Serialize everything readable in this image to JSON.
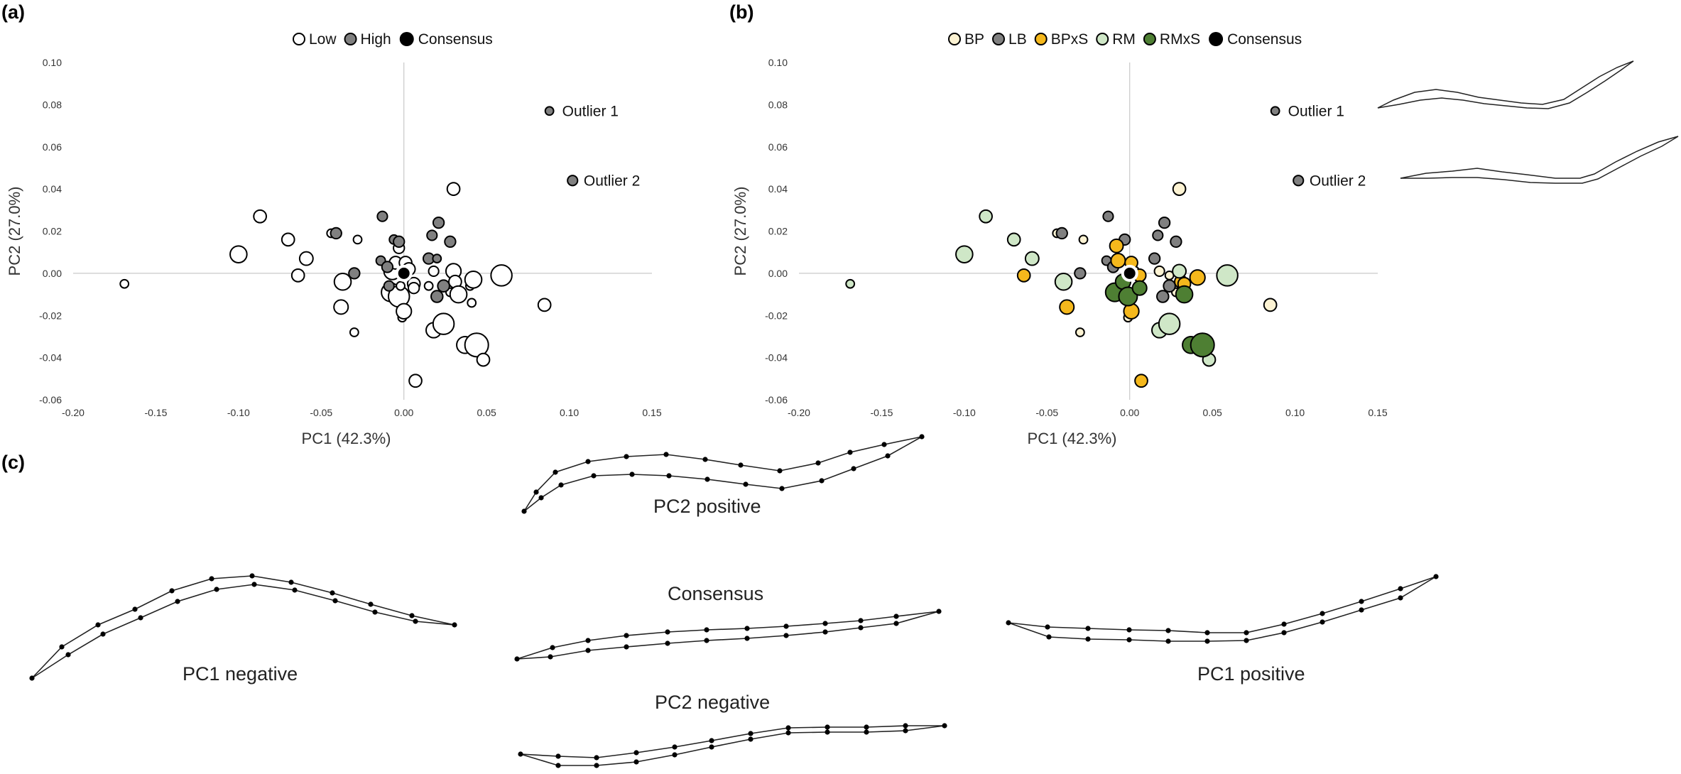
{
  "panel_labels": {
    "a": "(a)",
    "b": "(b)",
    "c": "(c)"
  },
  "chart_data": [
    {
      "type": "scatter",
      "panel": "(a)",
      "xlabel": "PC1 (42.3%)",
      "ylabel": "PC2 (27.0%)",
      "xlim": [
        -0.2,
        0.15
      ],
      "ylim": [
        -0.06,
        0.1
      ],
      "xticks": [
        "-0.20",
        "-0.15",
        "-0.10",
        "-0.05",
        "0.00",
        "0.05",
        "0.10",
        "0.15"
      ],
      "yticks": [
        "-0.06",
        "-0.04",
        "-0.02",
        "0.00",
        "0.02",
        "0.04",
        "0.06",
        "0.08",
        "0.10"
      ],
      "legend_position": "top-center",
      "legend": [
        {
          "name": "Low",
          "color": "#ffffff"
        },
        {
          "name": "High",
          "color": "#808080"
        },
        {
          "name": "Consensus",
          "color": "#000000"
        }
      ],
      "annotations": [
        {
          "text": "Outlier 1",
          "x": 0.088,
          "y": 0.077
        },
        {
          "text": "Outlier 2",
          "x": 0.101,
          "y": 0.044
        }
      ],
      "series": [
        {
          "name": "Low",
          "color": "#ffffff",
          "points": [
            [
              -0.169,
              -0.005,
              1
            ],
            [
              -0.1,
              0.009,
              2
            ],
            [
              -0.087,
              0.027,
              1.5
            ],
            [
              -0.07,
              0.016,
              1.5
            ],
            [
              -0.064,
              -0.001,
              1.5
            ],
            [
              -0.059,
              0.007,
              1.6
            ],
            [
              -0.044,
              0.019,
              1
            ],
            [
              -0.037,
              -0.004,
              2
            ],
            [
              -0.038,
              -0.016,
              1.7
            ],
            [
              -0.03,
              -0.028,
              1
            ],
            [
              -0.028,
              0.016,
              1
            ],
            [
              -0.009,
              0.003,
              1
            ],
            [
              -0.008,
              -0.009,
              2.2
            ],
            [
              -0.007,
              0.001,
              2
            ],
            [
              -0.005,
              0.005,
              1.5
            ],
            [
              -0.003,
              -0.011,
              2.5
            ],
            [
              -0.003,
              0.012,
              1.3
            ],
            [
              -0.001,
              -0.021,
              1
            ],
            [
              0.0,
              -0.018,
              1.8
            ],
            [
              -0.002,
              -0.006,
              1
            ],
            [
              0.001,
              0.005,
              1.5
            ],
            [
              0.003,
              0.002,
              1.5
            ],
            [
              0.006,
              -0.005,
              1.5
            ],
            [
              0.006,
              -0.007,
              1.3
            ],
            [
              0.007,
              -0.051,
              1.5
            ],
            [
              0.015,
              -0.006,
              1
            ],
            [
              0.018,
              0.001,
              1.2
            ],
            [
              0.018,
              -0.027,
              1.8
            ],
            [
              0.024,
              -0.024,
              2.5
            ],
            [
              0.028,
              -0.009,
              1
            ],
            [
              0.03,
              0.04,
              1.5
            ],
            [
              0.03,
              0.001,
              1.8
            ],
            [
              0.031,
              -0.004,
              1.5
            ],
            [
              0.033,
              -0.01,
              2
            ],
            [
              0.037,
              -0.034,
              2
            ],
            [
              0.04,
              -0.006,
              1
            ],
            [
              0.041,
              -0.014,
              1
            ],
            [
              0.042,
              -0.003,
              2
            ],
            [
              0.044,
              -0.034,
              2.8
            ],
            [
              0.048,
              -0.041,
              1.5
            ],
            [
              0.059,
              -0.001,
              2.5
            ],
            [
              0.085,
              -0.015,
              1.5
            ]
          ]
        },
        {
          "name": "High",
          "color": "#808080",
          "points": [
            [
              -0.041,
              0.019,
              1.3
            ],
            [
              -0.03,
              0.0,
              1.3
            ],
            [
              -0.013,
              0.027,
              1.2
            ],
            [
              -0.014,
              0.006,
              1.1
            ],
            [
              -0.01,
              0.003,
              1.3
            ],
            [
              -0.009,
              -0.006,
              1.2
            ],
            [
              -0.006,
              0.016,
              1.1
            ],
            [
              -0.003,
              0.015,
              1.3
            ],
            [
              0.015,
              0.007,
              1.3
            ],
            [
              0.017,
              0.018,
              1.2
            ],
            [
              0.02,
              0.007,
              1
            ],
            [
              0.02,
              -0.011,
              1.4
            ],
            [
              0.021,
              0.024,
              1.3
            ],
            [
              0.024,
              -0.006,
              1.4
            ],
            [
              0.028,
              0.015,
              1.3
            ],
            [
              0.088,
              0.077,
              1
            ],
            [
              0.102,
              0.044,
              1.2
            ]
          ]
        },
        {
          "name": "Consensus",
          "color": "#000000",
          "points": [
            [
              0.0,
              0.0,
              1.6
            ]
          ]
        }
      ]
    },
    {
      "type": "scatter",
      "panel": "(b)",
      "xlabel": "PC1 (42.3%)",
      "ylabel": "PC2 (27.0%)",
      "xlim": [
        -0.2,
        0.15
      ],
      "ylim": [
        -0.06,
        0.1
      ],
      "xticks": [
        "-0.20",
        "-0.15",
        "-0.10",
        "-0.05",
        "0.00",
        "0.05",
        "0.10",
        "0.15"
      ],
      "yticks": [
        "-0.06",
        "-0.04",
        "-0.02",
        "0.00",
        "0.02",
        "0.04",
        "0.06",
        "0.08",
        "0.10"
      ],
      "legend_position": "top-center",
      "legend": [
        {
          "name": "BP",
          "color": "#fdf3d3"
        },
        {
          "name": "LB",
          "color": "#808080"
        },
        {
          "name": "BPxS",
          "color": "#f5b81c"
        },
        {
          "name": "RM",
          "color": "#cfe7c7"
        },
        {
          "name": "RMxS",
          "color": "#4e7f33"
        },
        {
          "name": "Consensus",
          "color": "#000000"
        }
      ],
      "annotations": [
        {
          "text": "Outlier 1",
          "x": 0.088,
          "y": 0.077
        },
        {
          "text": "Outlier 2",
          "x": 0.101,
          "y": 0.044
        }
      ],
      "series": [
        {
          "name": "BP",
          "color": "#fdf3d3",
          "points": [
            [
              -0.044,
              0.019,
              1
            ],
            [
              -0.028,
              0.016,
              1
            ],
            [
              -0.03,
              -0.028,
              1
            ],
            [
              -0.001,
              -0.021,
              1
            ],
            [
              0.003,
              0.001,
              1.1
            ],
            [
              0.018,
              0.001,
              1.2
            ],
            [
              0.024,
              -0.001,
              1
            ],
            [
              0.028,
              -0.009,
              1
            ],
            [
              0.03,
              0.04,
              1.5
            ],
            [
              0.085,
              -0.015,
              1.5
            ]
          ]
        },
        {
          "name": "LB",
          "color": "#808080",
          "points": [
            [
              -0.041,
              0.019,
              1.3
            ],
            [
              -0.03,
              0.0,
              1.3
            ],
            [
              -0.013,
              0.027,
              1.2
            ],
            [
              -0.014,
              0.006,
              1.1
            ],
            [
              -0.01,
              0.003,
              1.3
            ],
            [
              -0.003,
              0.016,
              1.3
            ],
            [
              -0.006,
              -0.006,
              1.2
            ],
            [
              0.015,
              0.007,
              1.3
            ],
            [
              0.017,
              0.018,
              1.2
            ],
            [
              0.02,
              -0.011,
              1.4
            ],
            [
              0.021,
              0.024,
              1.3
            ],
            [
              0.024,
              -0.006,
              1.4
            ],
            [
              0.028,
              0.015,
              1.3
            ],
            [
              0.088,
              0.077,
              1
            ],
            [
              0.102,
              0.044,
              1.2
            ]
          ]
        },
        {
          "name": "BPxS",
          "color": "#f5b81c",
          "points": [
            [
              -0.064,
              -0.001,
              1.5
            ],
            [
              -0.038,
              -0.016,
              1.7
            ],
            [
              -0.008,
              0.013,
              1.6
            ],
            [
              -0.007,
              0.006,
              1.7
            ],
            [
              0.001,
              0.005,
              1.5
            ],
            [
              0.001,
              -0.018,
              1.8
            ],
            [
              0.006,
              -0.001,
              1.5
            ],
            [
              0.007,
              -0.051,
              1.5
            ],
            [
              0.031,
              -0.004,
              1.5
            ],
            [
              0.033,
              -0.005,
              1.5
            ],
            [
              0.041,
              -0.002,
              1.8
            ]
          ]
        },
        {
          "name": "RM",
          "color": "#cfe7c7",
          "points": [
            [
              -0.169,
              -0.005,
              1
            ],
            [
              -0.1,
              0.009,
              2
            ],
            [
              -0.087,
              0.027,
              1.5
            ],
            [
              -0.07,
              0.016,
              1.5
            ],
            [
              -0.059,
              0.007,
              1.6
            ],
            [
              -0.04,
              -0.004,
              2
            ],
            [
              0.018,
              -0.027,
              1.8
            ],
            [
              0.024,
              -0.024,
              2.5
            ],
            [
              0.03,
              0.001,
              1.6
            ],
            [
              0.048,
              -0.041,
              1.5
            ],
            [
              0.059,
              -0.001,
              2.5
            ]
          ]
        },
        {
          "name": "RMxS",
          "color": "#4e7f33",
          "points": [
            [
              -0.009,
              -0.009,
              2.2
            ],
            [
              -0.004,
              -0.004,
              1.8
            ],
            [
              -0.001,
              -0.011,
              2.2
            ],
            [
              0.006,
              -0.007,
              1.7
            ],
            [
              0.033,
              -0.01,
              2
            ],
            [
              0.037,
              -0.034,
              2
            ],
            [
              0.044,
              -0.034,
              2.8
            ]
          ]
        },
        {
          "name": "Consensus",
          "color": "#000000",
          "points": [
            [
              0.0,
              0.0,
              1.6
            ]
          ]
        }
      ]
    }
  ],
  "shapes": {
    "pc2_positive": "PC2 positive",
    "consensus": "Consensus",
    "pc1_negative": "PC1 negative",
    "pc2_negative": "PC2 negative",
    "pc1_positive": "PC1 positive"
  }
}
